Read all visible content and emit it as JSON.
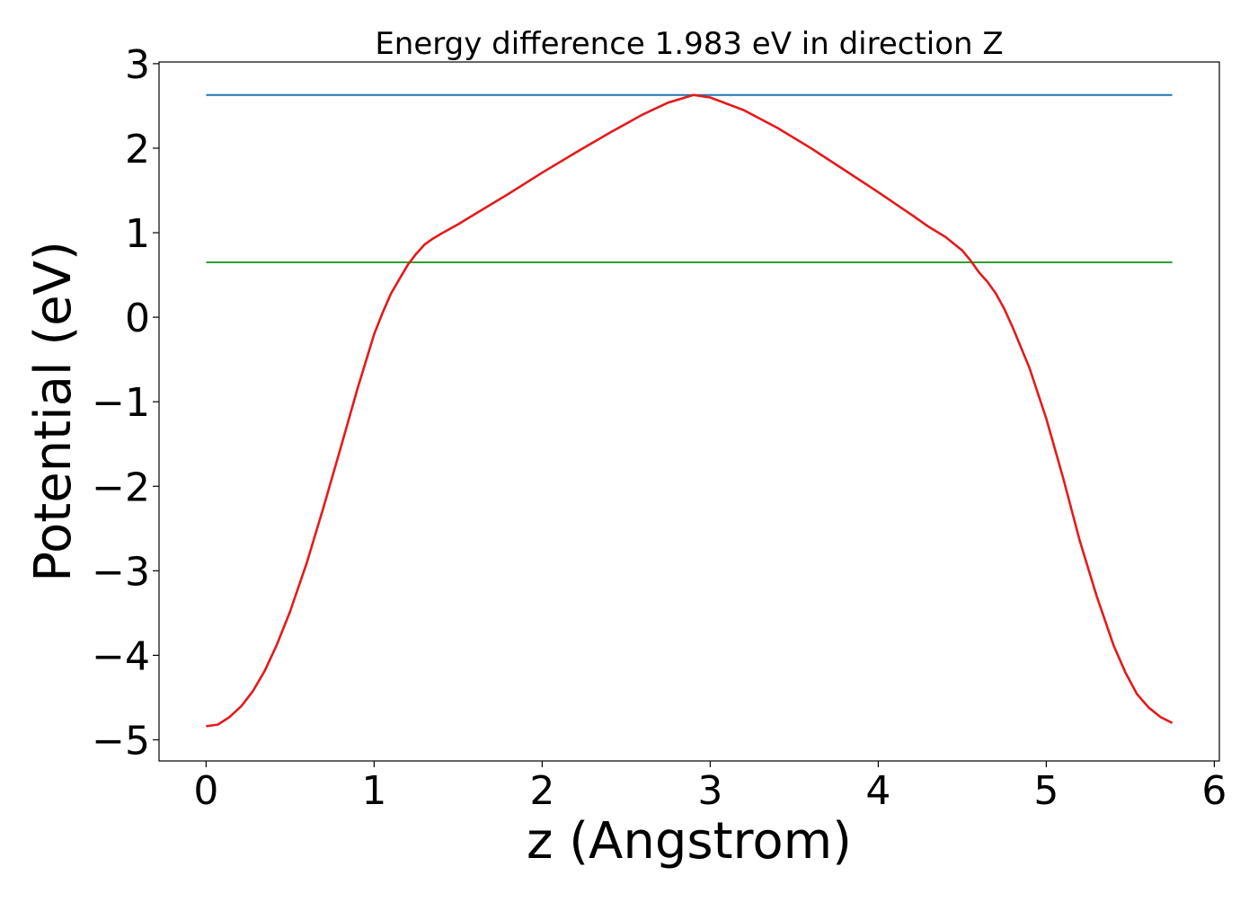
{
  "chart_data": {
    "type": "line",
    "title": "Energy difference 1.983 eV in direction Z",
    "xlabel": "z (Angstrom)",
    "ylabel": "Potential (eV)",
    "xlim": [
      -0.28,
      6.03
    ],
    "ylim": [
      -5.25,
      3.02
    ],
    "xticks": [
      0,
      1,
      2,
      3,
      4,
      5,
      6
    ],
    "xtick_labels": [
      "0",
      "1",
      "2",
      "3",
      "4",
      "5",
      "6"
    ],
    "yticks": [
      -5,
      -4,
      -3,
      -2,
      -1,
      0,
      1,
      2,
      3
    ],
    "ytick_labels": [
      "−5",
      "−4",
      "−3",
      "−2",
      "−1",
      "0",
      "1",
      "2",
      "3"
    ],
    "grid": false,
    "series": [
      {
        "color": "#1f77b4",
        "x": [
          0,
          5.75
        ],
        "y": [
          2.63,
          2.63
        ]
      },
      {
        "color": "#2ca02c",
        "x": [
          0,
          5.75
        ],
        "y": [
          0.65,
          0.65
        ]
      },
      {
        "color": "#e41a1c",
        "x": [
          0,
          0.07,
          0.14,
          0.21,
          0.28,
          0.35,
          0.42,
          0.5,
          0.6,
          0.7,
          0.8,
          0.9,
          1.0,
          1.05,
          1.1,
          1.15,
          1.2,
          1.25,
          1.3,
          1.35,
          1.4,
          1.5,
          1.6,
          1.8,
          2.0,
          2.2,
          2.4,
          2.6,
          2.75,
          2.9,
          3.0,
          3.2,
          3.4,
          3.6,
          3.8,
          4.0,
          4.2,
          4.3,
          4.4,
          4.45,
          4.5,
          4.55,
          4.6,
          4.65,
          4.7,
          4.75,
          4.8,
          4.9,
          5.0,
          5.1,
          5.2,
          5.3,
          5.4,
          5.47,
          5.54,
          5.61,
          5.68,
          5.75
        ],
        "y": [
          -4.84,
          -4.82,
          -4.73,
          -4.6,
          -4.42,
          -4.18,
          -3.88,
          -3.48,
          -2.9,
          -2.24,
          -1.55,
          -0.85,
          -0.2,
          0.05,
          0.28,
          0.45,
          0.62,
          0.75,
          0.86,
          0.93,
          0.99,
          1.1,
          1.22,
          1.46,
          1.71,
          1.95,
          2.18,
          2.4,
          2.54,
          2.63,
          2.6,
          2.45,
          2.24,
          2.0,
          1.74,
          1.48,
          1.21,
          1.07,
          0.95,
          0.87,
          0.79,
          0.67,
          0.53,
          0.42,
          0.28,
          0.1,
          -0.12,
          -0.6,
          -1.2,
          -1.9,
          -2.65,
          -3.3,
          -3.88,
          -4.2,
          -4.46,
          -4.62,
          -4.73,
          -4.8
        ]
      }
    ]
  }
}
